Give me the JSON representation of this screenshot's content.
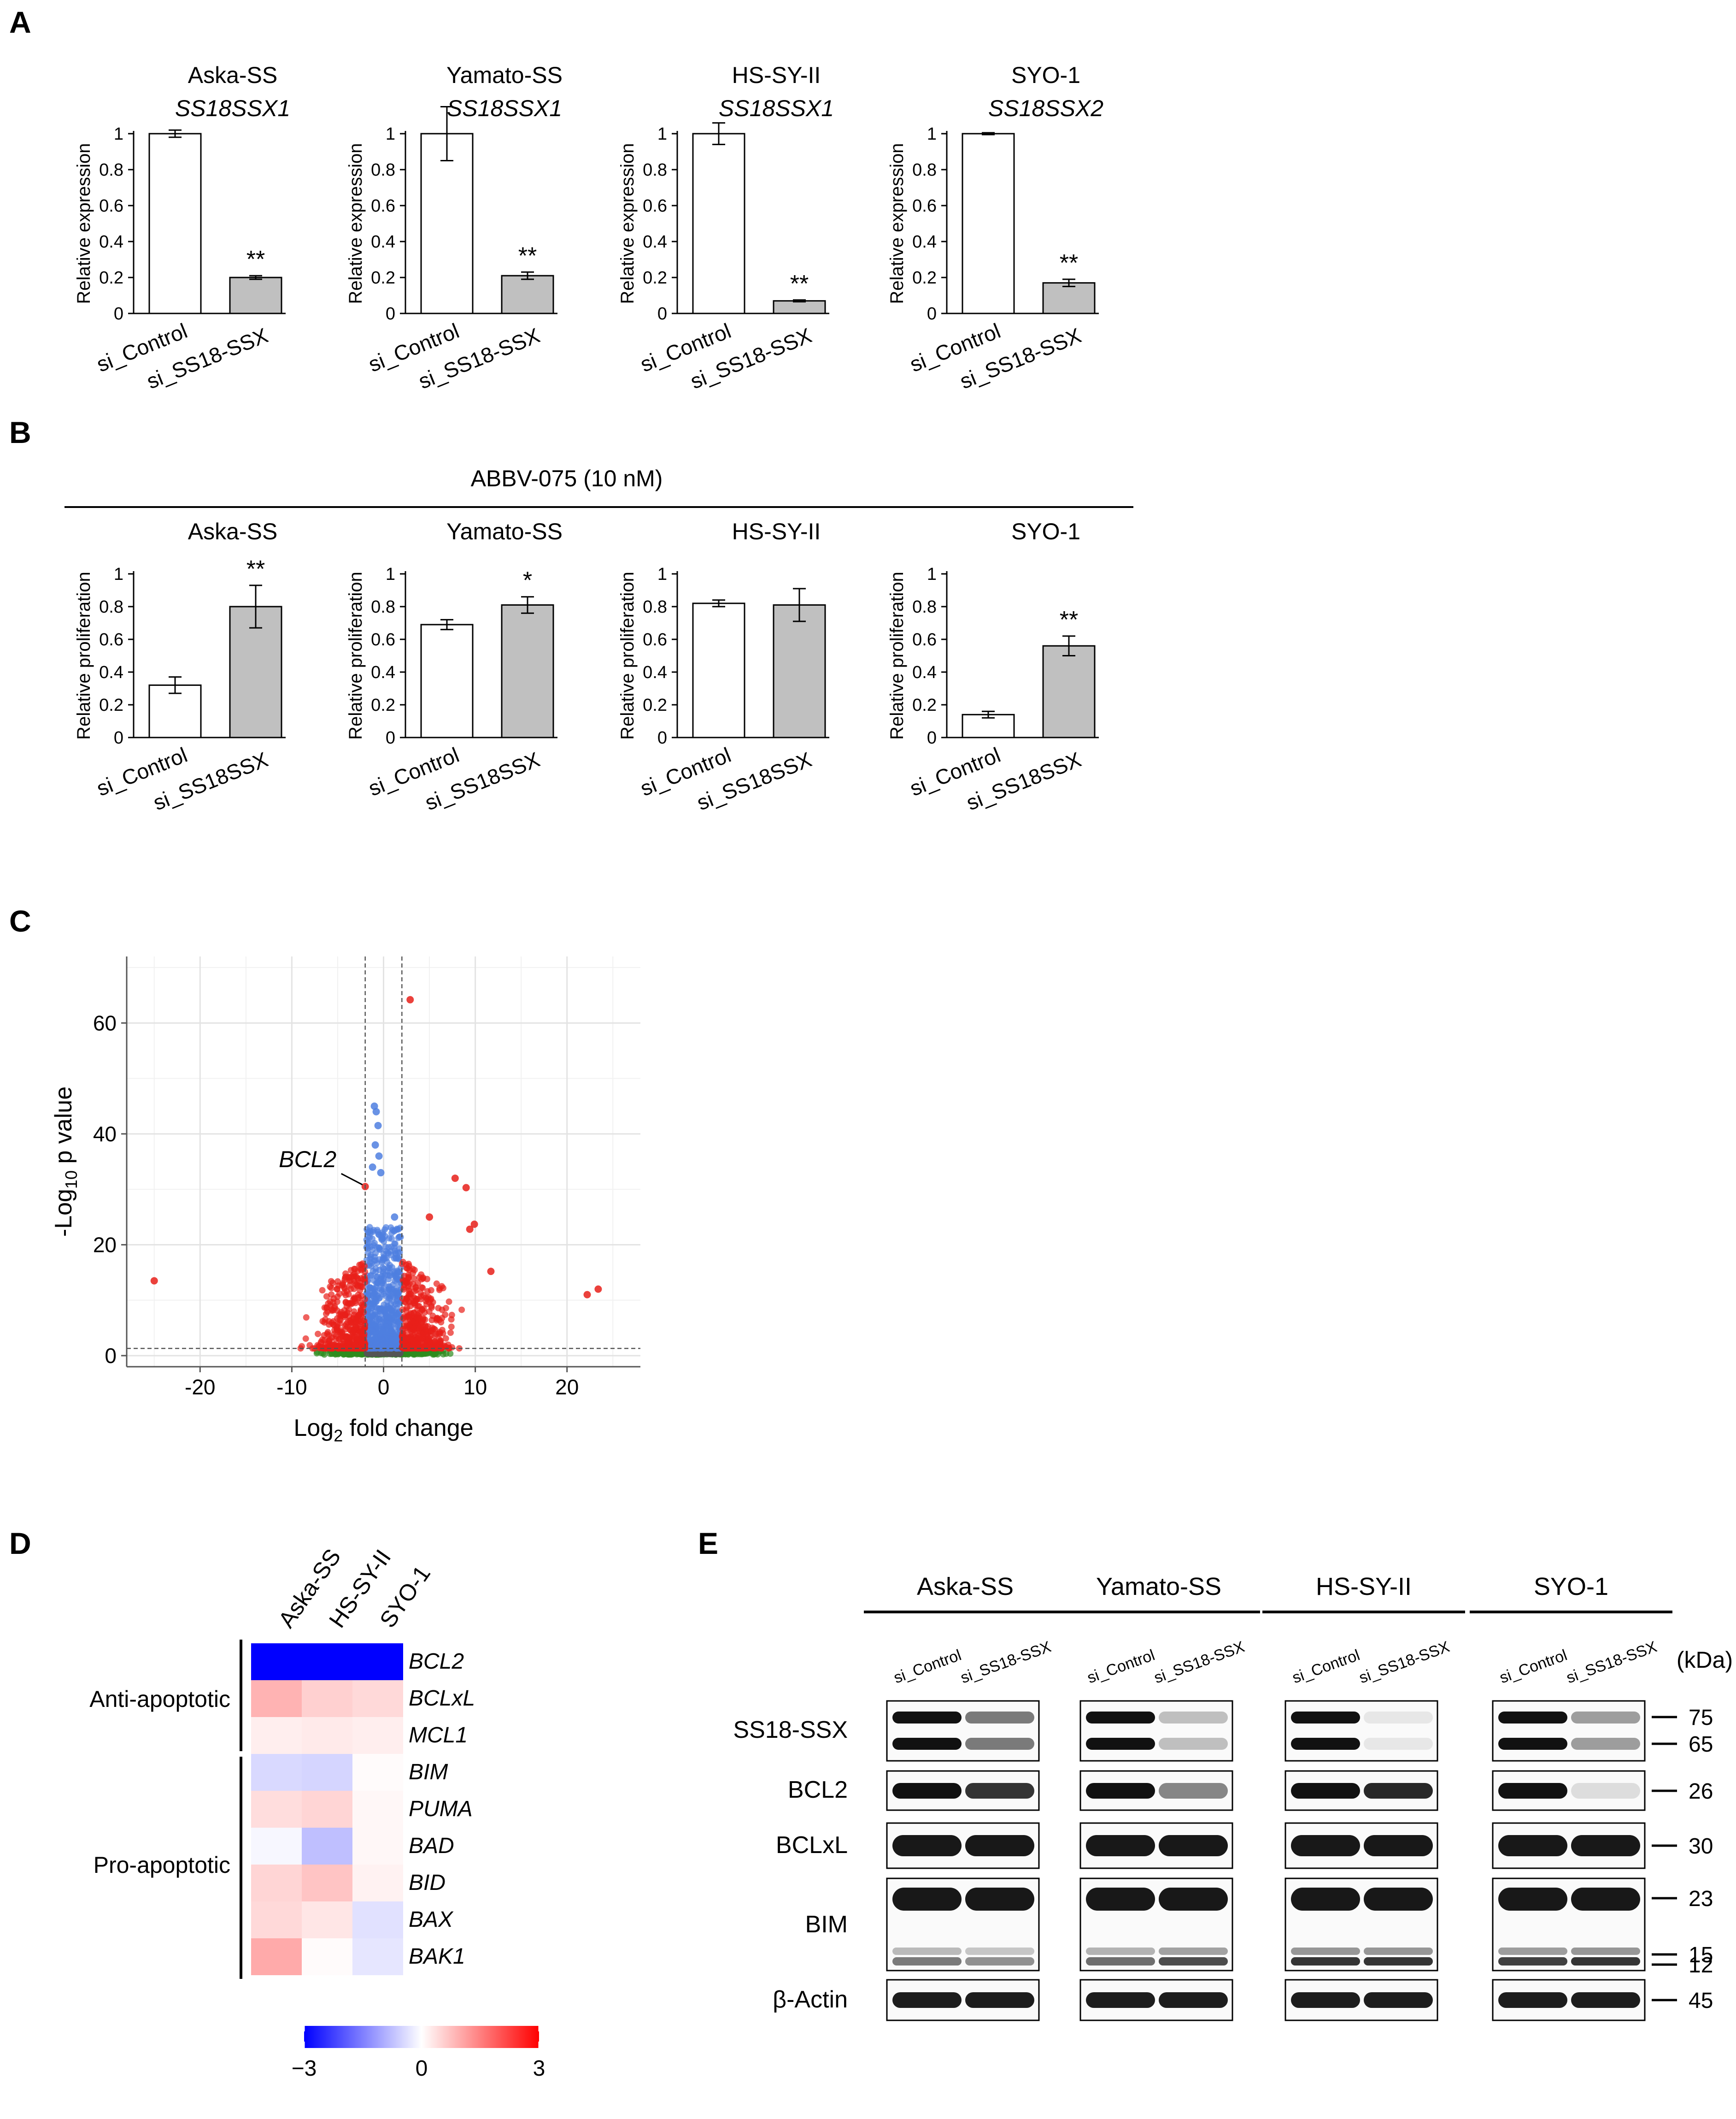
{
  "panel_labels": [
    "A",
    "B",
    "C",
    "D",
    "E"
  ],
  "colors": {
    "control_bar": "#ffffff",
    "knockdown_bar": "#c0c0c0",
    "up": "#e8201a",
    "mid": "#4f7fe0",
    "low": "#2e8b1e",
    "heat_low": "#0000ff",
    "heat_mid": "#ffffff",
    "heat_high": "#ff0000"
  },
  "chart_data": [
    {
      "panel": "A",
      "type": "bar",
      "ylabel": "Relative expression",
      "ylim": [
        0,
        1
      ],
      "yticks": [
        "0",
        "0.2",
        "0.4",
        "0.6",
        "0.8",
        "1"
      ],
      "categories": [
        "si_Control",
        "si_SS18-SSX"
      ],
      "subplots": [
        {
          "cell_line": "Aska-SS",
          "fusion": "SS18SSX1",
          "values": [
            1.0,
            0.2
          ],
          "errors": [
            0.02,
            0.01
          ],
          "sig": [
            "",
            "**"
          ]
        },
        {
          "cell_line": "Yamato-SS",
          "fusion": "SS18SSX1",
          "values": [
            1.0,
            0.21
          ],
          "errors": [
            0.15,
            0.02
          ],
          "sig": [
            "",
            "**"
          ]
        },
        {
          "cell_line": "HS-SY-II",
          "fusion": "SS18SSX1",
          "values": [
            1.0,
            0.07
          ],
          "errors": [
            0.06,
            0.005
          ],
          "sig": [
            "",
            "**"
          ]
        },
        {
          "cell_line": "SYO-1",
          "fusion": "SS18SSX2",
          "values": [
            1.0,
            0.17
          ],
          "errors": [
            0.005,
            0.02
          ],
          "sig": [
            "",
            "**"
          ]
        }
      ]
    },
    {
      "panel": "B",
      "type": "bar",
      "treatment": "ABBV-075 (10 nM)",
      "ylabel": "Relative proliferation",
      "ylim": [
        0,
        1
      ],
      "yticks": [
        "0",
        "0.2",
        "0.4",
        "0.6",
        "0.8",
        "1"
      ],
      "categories": [
        "si_Control",
        "si_SS18SSX"
      ],
      "subplots": [
        {
          "cell_line": "Aska-SS",
          "values": [
            0.32,
            0.8
          ],
          "errors": [
            0.05,
            0.13
          ],
          "sig": [
            "",
            "**"
          ]
        },
        {
          "cell_line": "Yamato-SS",
          "values": [
            0.69,
            0.81
          ],
          "errors": [
            0.03,
            0.05
          ],
          "sig": [
            "",
            "*"
          ]
        },
        {
          "cell_line": "HS-SY-II",
          "values": [
            0.82,
            0.81
          ],
          "errors": [
            0.02,
            0.1
          ],
          "sig": [
            "",
            ""
          ]
        },
        {
          "cell_line": "SYO-1",
          "values": [
            0.14,
            0.56
          ],
          "errors": [
            0.02,
            0.06
          ],
          "sig": [
            "",
            "**"
          ]
        }
      ]
    },
    {
      "panel": "C",
      "type": "scatter",
      "xlabel_main": "Log",
      "xlabel_sub": "2",
      "xlabel_tail": " fold change",
      "ylabel_main": "-Log",
      "ylabel_sub": "10",
      "ylabel_tail": " p value",
      "xlim": [
        -28,
        28
      ],
      "ylim": [
        -2,
        72
      ],
      "xticks": [
        -20,
        -10,
        0,
        10,
        20
      ],
      "yticks": [
        0,
        20,
        40,
        60
      ],
      "fc_threshold": 2,
      "p_threshold": 1.3,
      "annotation": {
        "label": "BCL2",
        "x": -2.0,
        "y": 30.5
      },
      "highlight_points": [
        {
          "x": 2.9,
          "y": 64.2,
          "group": "up"
        },
        {
          "x": -25.0,
          "y": 13.5,
          "group": "up"
        },
        {
          "x": 22.2,
          "y": 11.0,
          "group": "up"
        },
        {
          "x": 23.4,
          "y": 12.0,
          "group": "up"
        },
        {
          "x": 7.8,
          "y": 32.0,
          "group": "up"
        },
        {
          "x": 9.0,
          "y": 30.3,
          "group": "up"
        },
        {
          "x": 9.9,
          "y": 23.7,
          "group": "up"
        },
        {
          "x": 9.4,
          "y": 22.8,
          "group": "up"
        },
        {
          "x": 11.7,
          "y": 15.2,
          "group": "up"
        },
        {
          "x": 5.0,
          "y": 25.0,
          "group": "up"
        },
        {
          "x": -2.0,
          "y": 30.5,
          "group": "up"
        },
        {
          "x": -1.0,
          "y": 45.0,
          "group": "mid"
        },
        {
          "x": -0.8,
          "y": 44.0,
          "group": "mid"
        },
        {
          "x": -0.6,
          "y": 41.5,
          "group": "mid"
        },
        {
          "x": -0.9,
          "y": 38.0,
          "group": "mid"
        },
        {
          "x": -0.5,
          "y": 36.0,
          "group": "mid"
        },
        {
          "x": -1.2,
          "y": 34.0,
          "group": "mid"
        },
        {
          "x": -0.3,
          "y": 33.0,
          "group": "mid"
        },
        {
          "x": 1.2,
          "y": 25.0,
          "group": "mid"
        }
      ]
    },
    {
      "panel": "D",
      "type": "heatmap",
      "columns": [
        "Aska-SS",
        "HS-SY-II",
        "SYO-1"
      ],
      "rows": [
        "BCL2",
        "BCLxL",
        "MCL1",
        "BIM",
        "PUMA",
        "BAD",
        "BID",
        "BAX",
        "BAK1"
      ],
      "values": [
        [
          -3.0,
          -3.0,
          -3.0
        ],
        [
          0.9,
          0.55,
          0.45
        ],
        [
          0.2,
          0.25,
          0.2
        ],
        [
          -0.45,
          -0.5,
          0.05
        ],
        [
          0.4,
          0.5,
          0.1
        ],
        [
          -0.1,
          -0.75,
          0.1
        ],
        [
          0.5,
          0.7,
          0.15
        ],
        [
          0.45,
          0.3,
          -0.35
        ],
        [
          1.0,
          0.05,
          -0.3
        ]
      ],
      "groups": [
        {
          "label": "Anti-apoptotic",
          "rows": [
            0,
            2
          ]
        },
        {
          "label": "Pro-apoptotic",
          "rows": [
            3,
            8
          ]
        }
      ],
      "scale": {
        "min": -3,
        "max": 3,
        "ticks": [
          "−3",
          "0",
          "3"
        ]
      }
    }
  ],
  "western": {
    "kda_label": "(kDa)",
    "lane_labels": [
      "si_Control",
      "si_SS18-SSX"
    ],
    "cell_lines": [
      "Aska-SS",
      "Yamato-SS",
      "HS-SY-II",
      "SYO-1"
    ],
    "rows": [
      "SS18-SSX",
      "BCL2",
      "BCLxL",
      "BIM",
      "β-Actin"
    ],
    "markers": [
      "75",
      "65",
      "26",
      "30",
      "23",
      "15",
      "12",
      "45"
    ]
  }
}
